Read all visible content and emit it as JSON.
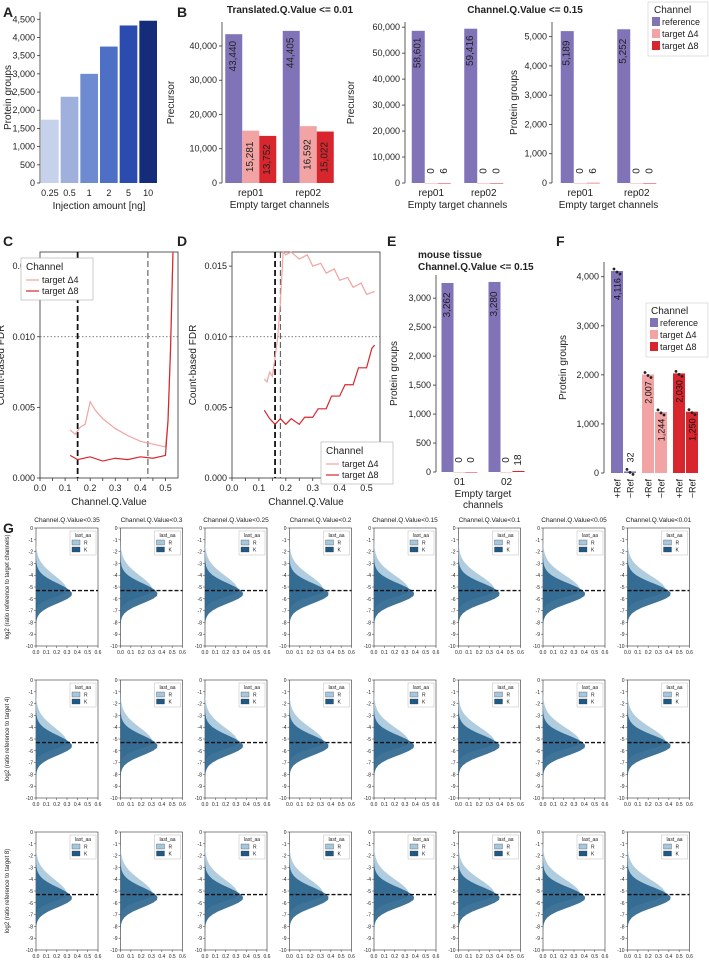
{
  "panel_letters": [
    "A",
    "B",
    "C",
    "D",
    "E",
    "F",
    "G"
  ],
  "colors": {
    "reference": "#8073b8",
    "target4": "#f2a3a3",
    "target8": "#d7262e",
    "A_blues": [
      "#c6d2ec",
      "#9fb0dd",
      "#6e8ad0",
      "#4e6fc6",
      "#2c4bae",
      "#152c7a"
    ],
    "hist_R": "#a7c7dc",
    "hist_K": "#1f5a86"
  },
  "chart_data": [
    {
      "id": "A",
      "type": "bar",
      "categories": [
        "0.25",
        "0.5",
        "1",
        "2",
        "5",
        "10"
      ],
      "values": [
        1740,
        2370,
        3000,
        3750,
        4330,
        4460
      ],
      "xlabel": "Injection amount [ng]",
      "ylabel": "Protein groups",
      "ylim": [
        0,
        4700
      ],
      "yticks": [
        0,
        500,
        1000,
        1500,
        2000,
        2500,
        3000,
        3500,
        4000,
        4500
      ],
      "yticklabels": [
        "0",
        "500",
        "1,000",
        "1,500",
        "2,000",
        "2,500",
        "3,000",
        "3,500",
        "4,000",
        "4,500"
      ]
    },
    {
      "id": "B1",
      "type": "bar",
      "title": "Translated.Q.Value <= 0.01",
      "categories": [
        "rep01",
        "rep02"
      ],
      "series": [
        {
          "name": "reference",
          "values": [
            43440,
            44405
          ],
          "labels": [
            "43,440",
            "44,405"
          ]
        },
        {
          "name": "target Δ4",
          "values": [
            15281,
            16592
          ],
          "labels": [
            "15,281",
            "16,592"
          ]
        },
        {
          "name": "target Δ8",
          "values": [
            13752,
            15022
          ],
          "labels": [
            "13,752",
            "15,022"
          ]
        }
      ],
      "xlabel": "Empty target channels",
      "ylabel": "Precursor",
      "ylim": [
        0,
        47000
      ],
      "yticks": [
        0,
        10000,
        20000,
        30000,
        40000
      ],
      "yticklabels": [
        "0",
        "10,000",
        "20,000",
        "30,000",
        "40,000"
      ]
    },
    {
      "id": "B2",
      "type": "bar",
      "title": "Channel.Q.Value <= 0.15",
      "categories": [
        "rep01",
        "rep02"
      ],
      "series": [
        {
          "name": "reference",
          "values": [
            58601,
            59416
          ],
          "labels": [
            "58,601",
            "59,416"
          ]
        },
        {
          "name": "target Δ4",
          "values": [
            0,
            0
          ],
          "labels": [
            "0",
            "0"
          ]
        },
        {
          "name": "target Δ8",
          "values": [
            6,
            0
          ],
          "labels": [
            "6",
            "0"
          ]
        }
      ],
      "xlabel": "Empty target channels",
      "ylabel": "Precursor",
      "ylim": [
        0,
        62000
      ],
      "yticks": [
        0,
        10000,
        20000,
        30000,
        40000,
        50000,
        60000
      ],
      "yticklabels": [
        "0",
        "10,000",
        "20,000",
        "30,000",
        "40,000",
        "50,000",
        "60,000"
      ]
    },
    {
      "id": "B3",
      "type": "bar",
      "categories": [
        "rep01",
        "rep02"
      ],
      "series": [
        {
          "name": "reference",
          "values": [
            5189,
            5252
          ],
          "labels": [
            "5,189",
            "5,252"
          ]
        },
        {
          "name": "target Δ4",
          "values": [
            0,
            0
          ],
          "labels": [
            "0",
            "0"
          ]
        },
        {
          "name": "target Δ8",
          "values": [
            6,
            0
          ],
          "labels": [
            "6",
            "0"
          ]
        }
      ],
      "xlabel": "Empty target channels",
      "ylabel": "Protein groups",
      "ylim": [
        0,
        5500
      ],
      "yticks": [
        0,
        1000,
        2000,
        3000,
        4000,
        5000
      ],
      "yticklabels": [
        "0",
        "1,000",
        "2,000",
        "3,000",
        "4,000",
        "5,000"
      ],
      "legend": {
        "title": "Channel",
        "entries": [
          "reference",
          "target Δ4",
          "target Δ8"
        ],
        "position": "top-right"
      }
    },
    {
      "id": "C",
      "type": "line",
      "xlabel": "Channel.Q.Value",
      "ylabel": "Count-based FDR",
      "xlim": [
        0,
        0.55
      ],
      "ylim": [
        0,
        0.016
      ],
      "xticks": [
        0,
        0.05,
        0.1,
        0.15,
        0.2,
        0.25,
        0.3,
        0.35,
        0.4,
        0.45,
        0.5
      ],
      "xticklabels": [
        "0.0",
        "",
        "0.1",
        "",
        "0.2",
        "",
        "0.3",
        "",
        "0.4",
        "",
        "0.5"
      ],
      "yticks": [
        0,
        0.005,
        0.01,
        0.015
      ],
      "yticklabels": [
        "0.000",
        "0.005",
        "0.010",
        "0.015"
      ],
      "hline": 0.01,
      "vlines": [
        0.15,
        0.43
      ],
      "series": [
        {
          "name": "target Δ4",
          "x": [
            0.12,
            0.14,
            0.16,
            0.18,
            0.2,
            0.22,
            0.25,
            0.3,
            0.35,
            0.4,
            0.45,
            0.5,
            0.51,
            0.52,
            0.53
          ],
          "y": [
            0.0034,
            0.0031,
            0.0036,
            0.0038,
            0.0054,
            0.0048,
            0.0042,
            0.0035,
            0.003,
            0.0026,
            0.0024,
            0.0022,
            0.004,
            0.009,
            0.016
          ]
        },
        {
          "name": "target Δ8",
          "x": [
            0.12,
            0.15,
            0.2,
            0.25,
            0.3,
            0.35,
            0.4,
            0.45,
            0.5,
            0.51,
            0.52,
            0.53
          ],
          "y": [
            0.0016,
            0.0013,
            0.0015,
            0.0012,
            0.0014,
            0.0013,
            0.0015,
            0.0014,
            0.0016,
            0.004,
            0.009,
            0.016
          ]
        }
      ],
      "legend": {
        "title": "Channel",
        "entries": [
          "target Δ4",
          "target Δ8"
        ],
        "position": "top-left"
      }
    },
    {
      "id": "D",
      "type": "line",
      "xlabel": "Channel.Q.Value",
      "ylabel": "Count-based FDR",
      "xlim": [
        0,
        0.55
      ],
      "ylim": [
        0,
        0.016
      ],
      "xticks": [
        0,
        0.05,
        0.1,
        0.15,
        0.2,
        0.25,
        0.3,
        0.35,
        0.4,
        0.45,
        0.5
      ],
      "xticklabels": [
        "0.0",
        "",
        "0.1",
        "",
        "0.2",
        "",
        "0.3",
        "",
        "0.4",
        "",
        "0.5"
      ],
      "yticks": [
        0,
        0.005,
        0.01,
        0.015
      ],
      "yticklabels": [
        "0.000",
        "0.005",
        "0.010",
        "0.015"
      ],
      "hline": 0.01,
      "vlines": [
        0.16,
        0.18
      ],
      "series": [
        {
          "name": "target Δ4",
          "x": [
            0.12,
            0.13,
            0.14,
            0.15,
            0.16,
            0.17,
            0.18,
            0.19,
            0.2,
            0.22,
            0.25,
            0.28,
            0.3,
            0.33,
            0.35,
            0.38,
            0.4,
            0.43,
            0.45,
            0.48,
            0.5,
            0.53
          ],
          "y": [
            0.007,
            0.0068,
            0.0075,
            0.0072,
            0.0085,
            0.01,
            0.0125,
            0.0165,
            0.0158,
            0.0162,
            0.0155,
            0.0158,
            0.015,
            0.0152,
            0.0145,
            0.0148,
            0.014,
            0.0142,
            0.0135,
            0.0138,
            0.013,
            0.0132
          ]
        },
        {
          "name": "target Δ8",
          "x": [
            0.12,
            0.14,
            0.16,
            0.18,
            0.2,
            0.22,
            0.25,
            0.27,
            0.3,
            0.32,
            0.35,
            0.37,
            0.4,
            0.42,
            0.45,
            0.47,
            0.5,
            0.52,
            0.53
          ],
          "y": [
            0.0048,
            0.0042,
            0.0038,
            0.0042,
            0.0038,
            0.0042,
            0.0038,
            0.0043,
            0.0043,
            0.0049,
            0.0049,
            0.0058,
            0.0058,
            0.0066,
            0.0066,
            0.0078,
            0.0078,
            0.0092,
            0.0094
          ]
        }
      ],
      "legend": {
        "title": "Channel",
        "entries": [
          "target Δ4",
          "target Δ8"
        ],
        "position": "bottom-right"
      }
    },
    {
      "id": "E",
      "type": "bar",
      "title": "mouse tissue\nChannel.Q.Value <= 0.15",
      "categories": [
        "01",
        "02"
      ],
      "series": [
        {
          "name": "reference",
          "values": [
            3262,
            3280
          ],
          "labels": [
            "3,262",
            "3,280"
          ]
        },
        {
          "name": "target Δ4",
          "values": [
            0,
            0
          ],
          "labels": [
            "0",
            "0"
          ]
        },
        {
          "name": "target Δ8",
          "values": [
            0,
            18
          ],
          "labels": [
            "0",
            "18"
          ]
        }
      ],
      "xlabel": "Empty target\nchannels",
      "ylabel": "Protein groups",
      "ylim": [
        0,
        3400
      ],
      "yticks": [
        0,
        500,
        1000,
        1500,
        2000,
        2500,
        3000
      ],
      "yticklabels": [
        "0",
        "500",
        "1,000",
        "1,500",
        "2,000",
        "2,500",
        "3,000"
      ]
    },
    {
      "id": "F",
      "type": "bar",
      "categories": [
        "+Ref",
        "−Ref",
        "+Ref",
        "−Ref",
        "+Ref",
        "−Ref"
      ],
      "values": [
        4116,
        32,
        2007,
        1244,
        2030,
        1250
      ],
      "labels": [
        "4,116",
        "32",
        "2,007",
        "1,244",
        "2,030",
        "1,250"
      ],
      "bar_channels": [
        "reference",
        "reference",
        "target Δ4",
        "target Δ4",
        "target Δ8",
        "target Δ8"
      ],
      "ylabel": "Protein groups",
      "ylim": [
        0,
        4300
      ],
      "yticks": [
        0,
        1000,
        2000,
        3000,
        4000
      ],
      "yticklabels": [
        "0",
        "1,000",
        "2,000",
        "3,000",
        "4,000"
      ],
      "legend": {
        "title": "Channel",
        "entries": [
          "reference",
          "target Δ4",
          "target Δ8"
        ],
        "position": "right"
      }
    },
    {
      "id": "G",
      "type": "area",
      "column_titles": [
        "Channel.Q.Value<0.35",
        "Channel.Q.Value<0.3",
        "Channel.Q.Value<0.25",
        "Channel.Q.Value<0.2",
        "Channel.Q.Value<0.15",
        "Channel.Q.Value<0.1",
        "Channel.Q.Value<0.05",
        "Channel.Q.Value<0.01"
      ],
      "row_ylabels": [
        "log2 (ratio reference to target channels)",
        "log2 (ratio reference to target 4)",
        "log2 (ratio reference to target 8)"
      ],
      "xlabel": "Density",
      "xticklabels": [
        "0.0",
        "0.1",
        "0.2",
        "0.3",
        "0.4",
        "0.5",
        "0.6"
      ],
      "yticklabels": [
        "0",
        "-1",
        "-2",
        "-3",
        "-4",
        "-5",
        "-6",
        "-7",
        "-8",
        "-9",
        "-10"
      ],
      "xlim": [
        0,
        0.6
      ],
      "ylim": [
        -10,
        0
      ],
      "hline": -5.3,
      "legend": {
        "title": "last_aa",
        "entries": [
          "R",
          "K"
        ],
        "position": "top-right"
      },
      "series": [
        {
          "name": "R",
          "peak_y": -5.3,
          "peak_density": 0.3
        },
        {
          "name": "K",
          "peak_y": -5.6,
          "peak_density": 0.35
        }
      ]
    }
  ]
}
